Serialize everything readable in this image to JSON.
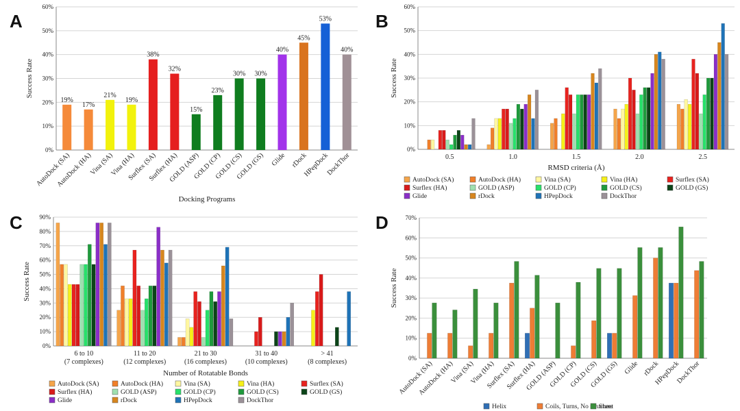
{
  "colors": {
    "AutoDock (SA)": "#f5a54a",
    "AutoDock (HA)": "#f07f2a",
    "Vina (SA)": "#fff7a0",
    "Vina (HA)": "#f6f019",
    "Surflex (SA)": "#e8231f",
    "Surflex (HA)": "#d81a1a",
    "GOLD (ASP)": "#9fe0b0",
    "GOLD (CP)": "#28e06a",
    "GOLD (CS)": "#1f9a3c",
    "GOLD (GS)": "#0c4418",
    "Glide": "#8a2ec7",
    "rDock": "#d7861e",
    "HPepDock": "#1f73b7",
    "DockThor": "#9b9198",
    "A_AutoDock (SA)": "#f58a3a",
    "A_AutoDock (HA)": "#f58a3a",
    "A_Vina (SA)": "#f2f20c",
    "A_Vina (HA)": "#f2f20c",
    "A_Surflex (SA)": "#e51f1f",
    "A_Surflex (HA)": "#e51f1f",
    "A_GOLD (ASP)": "#0f7d1f",
    "A_GOLD (CP)": "#0f7d1f",
    "A_GOLD (CS)": "#0f7d1f",
    "A_GOLD (GS)": "#0f7d1f",
    "A_Glide": "#a233ea",
    "A_rDock": "#d9731e",
    "A_HPepDock": "#1560d6",
    "A_DockThor": "#a09096",
    "Helix": "#2f6fb5",
    "Coils": "#ee7d35",
    "Sheet": "#3b8f3c"
  },
  "panels": {
    "a": "A",
    "b": "B",
    "c": "C",
    "d": "D"
  },
  "chart_data": [
    {
      "id": "A",
      "type": "bar",
      "categories": [
        "AutoDock (SA)",
        "AutoDock (HA)",
        "Vina (SA)",
        "Vina (HA)",
        "Surflex (SA)",
        "Surflex (HA)",
        "GOLD (ASP)",
        "GOLD (CP)",
        "GOLD (CS)",
        "GOLD (GS)",
        "Glide",
        "rDock",
        "HPepDock",
        "DockThor"
      ],
      "values": [
        19,
        17,
        21,
        19,
        38,
        32,
        15,
        23,
        30,
        30,
        40,
        45,
        53,
        40
      ],
      "value_labels": [
        "19%",
        "17%",
        "21%",
        "19%",
        "38%",
        "32%",
        "15%",
        "23%",
        "30%",
        "30%",
        "40%",
        "45%",
        "53%",
        "40%"
      ],
      "ylim": [
        0,
        60
      ],
      "yticks": [
        "0%",
        "10%",
        "20%",
        "30%",
        "40%",
        "50%",
        "60%"
      ],
      "xlabel": "Docking Programs",
      "ylabel": "Success Rate"
    },
    {
      "id": "B",
      "type": "bar",
      "categories": [
        "0.5",
        "1.0",
        "1.5",
        "2.0",
        "2.5"
      ],
      "series": [
        {
          "name": "AutoDock (SA)",
          "values": [
            0,
            2,
            11,
            17,
            19
          ]
        },
        {
          "name": "AutoDock (HA)",
          "values": [
            4,
            9,
            13,
            13,
            17
          ]
        },
        {
          "name": "Vina (SA)",
          "values": [
            4,
            13,
            0,
            17,
            21
          ]
        },
        {
          "name": "Vina (HA)",
          "values": [
            0,
            13,
            15,
            19,
            19
          ]
        },
        {
          "name": "Surflex (SA)",
          "values": [
            8,
            17,
            26,
            30,
            38
          ]
        },
        {
          "name": "Surflex (HA)",
          "values": [
            8,
            17,
            23,
            25,
            32
          ]
        },
        {
          "name": "GOLD (ASP)",
          "values": [
            4,
            11,
            15,
            15,
            15
          ]
        },
        {
          "name": "GOLD (CP)",
          "values": [
            2,
            13,
            23,
            23,
            23
          ]
        },
        {
          "name": "GOLD (CS)",
          "values": [
            6,
            19,
            23,
            26,
            30
          ]
        },
        {
          "name": "GOLD (GS)",
          "values": [
            8,
            17,
            23,
            26,
            30
          ]
        },
        {
          "name": "Glide",
          "values": [
            6,
            19,
            23,
            32,
            40
          ]
        },
        {
          "name": "rDock",
          "values": [
            2,
            23,
            32,
            40,
            45
          ]
        },
        {
          "name": "HPepDock",
          "values": [
            2,
            13,
            28,
            41,
            53
          ]
        },
        {
          "name": "DockThor",
          "values": [
            13,
            25,
            34,
            38,
            40
          ]
        }
      ],
      "ylim": [
        0,
        60
      ],
      "yticks": [
        "0%",
        "10%",
        "20%",
        "30%",
        "40%",
        "50%",
        "60%"
      ],
      "xlabel": "RMSD criteria (Å)",
      "ylabel": "Success Rate",
      "legend": "bottom"
    },
    {
      "id": "C",
      "type": "bar",
      "categories": [
        "6 to 10",
        "11 to 20",
        "21 to 30",
        "31 to 40",
        "> 41"
      ],
      "sublabels": [
        "(7 complexes)",
        "(12 complexes)",
        "(16 complexes)",
        "(10 complexes)",
        "(8 complexes)"
      ],
      "series": [
        {
          "name": "AutoDock (SA)",
          "values": [
            86,
            25,
            6,
            0,
            0
          ]
        },
        {
          "name": "AutoDock (HA)",
          "values": [
            57,
            42,
            6,
            0,
            0
          ]
        },
        {
          "name": "Vina (SA)",
          "values": [
            57,
            33,
            19,
            0,
            0
          ]
        },
        {
          "name": "Vina (HA)",
          "values": [
            43,
            33,
            13,
            0,
            25
          ]
        },
        {
          "name": "Surflex (SA)",
          "values": [
            43,
            67,
            38,
            10,
            38
          ]
        },
        {
          "name": "Surflex (HA)",
          "values": [
            43,
            42,
            31,
            20,
            50
          ]
        },
        {
          "name": "GOLD (ASP)",
          "values": [
            57,
            25,
            6,
            0,
            0
          ]
        },
        {
          "name": "GOLD (CP)",
          "values": [
            57,
            33,
            25,
            0,
            0
          ]
        },
        {
          "name": "GOLD (CS)",
          "values": [
            71,
            42,
            38,
            0,
            0
          ]
        },
        {
          "name": "GOLD (GS)",
          "values": [
            57,
            42,
            31,
            10,
            13
          ]
        },
        {
          "name": "Glide",
          "values": [
            86,
            83,
            38,
            10,
            0
          ]
        },
        {
          "name": "rDock",
          "values": [
            86,
            67,
            56,
            10,
            0
          ]
        },
        {
          "name": "HPepDock",
          "values": [
            71,
            58,
            69,
            20,
            38
          ]
        },
        {
          "name": "DockThor",
          "values": [
            86,
            67,
            19,
            30,
            0
          ]
        }
      ],
      "ylim": [
        0,
        90
      ],
      "yticks": [
        "0%",
        "10%",
        "20%",
        "30%",
        "40%",
        "50%",
        "60%",
        "70%",
        "80%",
        "90%"
      ],
      "xlabel": "Number of Rotatable Bonds",
      "ylabel": "Success Rate",
      "legend": "bottom"
    },
    {
      "id": "D",
      "type": "bar",
      "categories": [
        "AutoDock (SA)",
        "AutoDock (HA)",
        "Vina (SA)",
        "Vina (HA)",
        "Surflex (SA)",
        "Surflex (HA)",
        "GOLD (ASP)",
        "GOLD (CP)",
        "GOLD (CS)",
        "GOLD (GS)",
        "Glide",
        "rDock",
        "HPepDock",
        "DockThor"
      ],
      "series": [
        {
          "name": "Helix",
          "values": [
            0,
            0,
            0,
            0,
            0,
            12.5,
            0,
            0,
            0,
            12.5,
            0,
            0,
            37.5,
            0
          ]
        },
        {
          "name": "Coils, Turns, No structure",
          "values": [
            12.5,
            12.5,
            6.25,
            12.5,
            37.5,
            25,
            0,
            6.25,
            18.75,
            12.5,
            31.25,
            50,
            37.5,
            43.75
          ]
        },
        {
          "name": "Sheet",
          "values": [
            27.6,
            24.1,
            34.5,
            27.6,
            48.3,
            41.4,
            27.6,
            37.9,
            44.8,
            44.8,
            55.2,
            55.2,
            65.5,
            48.3
          ]
        }
      ],
      "ylim": [
        0,
        70
      ],
      "yticks": [
        "0%",
        "10%",
        "20%",
        "30%",
        "40%",
        "50%",
        "60%",
        "70%"
      ],
      "xlabel": "",
      "ylabel": "Success Rate",
      "legend": "bottom"
    }
  ]
}
